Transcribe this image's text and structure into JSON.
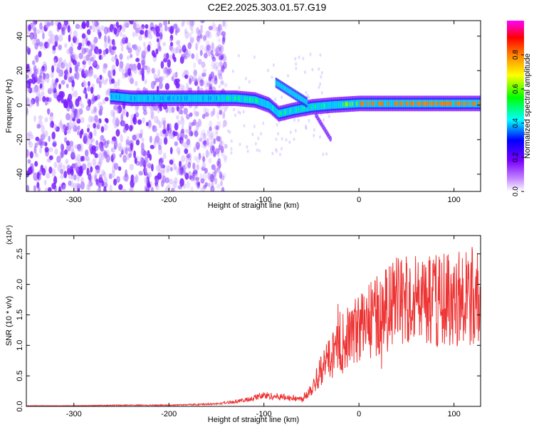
{
  "window": {
    "title": "C2E2.2025.303.01.57.G19"
  },
  "chart_data": [
    {
      "type": "heatmap",
      "title": "C2E2.2025.303.01.57.G19",
      "xlabel": "Height of straight line (km)",
      "ylabel": "Frequency (Hz)",
      "xlim": [
        -350,
        128
      ],
      "ylim": [
        -50,
        49
      ],
      "xticks": [
        -300,
        -200,
        -100,
        0,
        100
      ],
      "yticks": [
        -40,
        -20,
        0,
        20,
        40
      ],
      "colorbar": {
        "label": "Normalized spectral amplitude",
        "range": [
          0,
          1
        ],
        "ticks": [
          "0.0",
          "0.2",
          "0.4",
          "0.6",
          "0.8"
        ],
        "colors": [
          "#ffffff",
          "#7a00ff",
          "#0000ff",
          "#00ffff",
          "#00ff00",
          "#ffff00",
          "#ff8000",
          "#ff0000",
          "#ff00ff"
        ]
      },
      "ridge": [
        {
          "x": -260,
          "y": 5
        },
        {
          "x": -240,
          "y": 4
        },
        {
          "x": -200,
          "y": 4
        },
        {
          "x": -160,
          "y": 4
        },
        {
          "x": -130,
          "y": 4
        },
        {
          "x": -110,
          "y": 3
        },
        {
          "x": -95,
          "y": 0
        },
        {
          "x": -85,
          "y": -5
        },
        {
          "x": -70,
          "y": -3
        },
        {
          "x": -50,
          "y": -1
        },
        {
          "x": -30,
          "y": 0
        },
        {
          "x": 0,
          "y": 1
        },
        {
          "x": 50,
          "y": 1
        },
        {
          "x": 100,
          "y": 1
        },
        {
          "x": 128,
          "y": 1
        }
      ],
      "noise_until_x": -150
    },
    {
      "type": "line",
      "xlabel": "Height of straight line (km)",
      "ylabel": "SNR (10 * v/v)",
      "yscale_label": "(x10⁴)",
      "xlim": [
        -350,
        128
      ],
      "ylim": [
        0,
        2.8
      ],
      "xticks": [
        -300,
        -200,
        -100,
        0,
        100
      ],
      "yticks": [
        "0.0",
        "0.5",
        "1.0",
        "1.5",
        "2.0",
        "2.5"
      ],
      "color": "#ee3333",
      "series": [
        {
          "x": [
            -350,
            -300,
            -250,
            -200,
            -150,
            -120,
            -100,
            -80,
            -60,
            -50,
            -40,
            -30,
            -20,
            -10,
            0,
            20,
            40,
            60,
            80,
            100,
            128
          ],
          "y": [
            0.01,
            0.01,
            0.02,
            0.02,
            0.04,
            0.1,
            0.18,
            0.15,
            0.12,
            0.3,
            0.6,
            0.8,
            1.0,
            1.15,
            1.3,
            1.5,
            1.7,
            1.75,
            1.75,
            1.8,
            1.75
          ]
        }
      ]
    }
  ]
}
